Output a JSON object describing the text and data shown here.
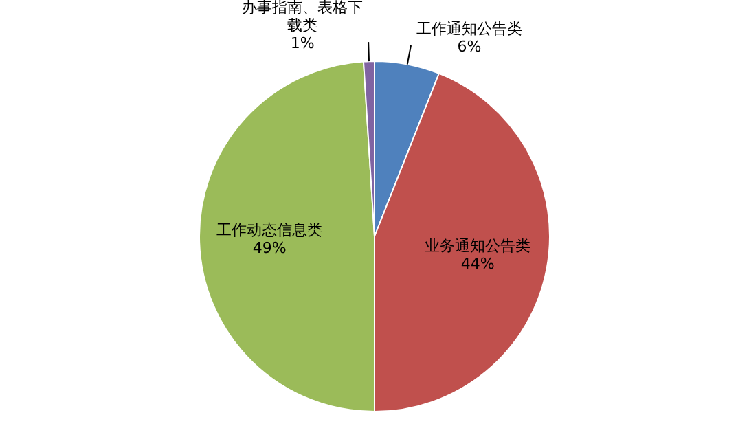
{
  "chart_data": {
    "type": "pie",
    "categories": [
      "工作通知公告类",
      "业务通知公告类",
      "工作动态信息类",
      "办事指南、表格下载类"
    ],
    "values": [
      6,
      44,
      49,
      1
    ],
    "colors": [
      "#4f81bd",
      "#c0504d",
      "#9bbb59",
      "#8064a2"
    ],
    "value_labels": [
      "6%",
      "44%",
      "49%",
      "1%"
    ],
    "legend": false
  }
}
